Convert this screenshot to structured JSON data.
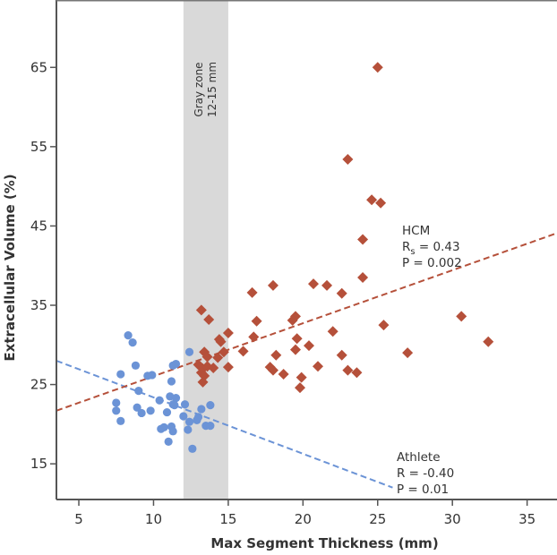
{
  "chart_data": {
    "type": "scatter",
    "title": "",
    "xlabel": "Max Segment Thickness (mm)",
    "ylabel": "Extracellular Volume (%)",
    "xlim": [
      3.5,
      37
    ],
    "ylim": [
      10.5,
      73.5
    ],
    "xticks": [
      5,
      10,
      15,
      20,
      25,
      30,
      35
    ],
    "yticks": [
      15,
      25,
      35,
      45,
      55,
      65
    ],
    "grid": false,
    "gray_zone": {
      "x_range": [
        12,
        15
      ],
      "label_line1": "Gray zone",
      "label_line2": "12-15 mm",
      "color": "#d9d9d9"
    },
    "series": [
      {
        "name": "Athlete",
        "marker": "circle",
        "color": "#6b93d6",
        "annotation": {
          "line1": "Athlete",
          "line2": "R = -0.40",
          "line3": "P = 0.01"
        },
        "trendline": {
          "x": [
            3.5,
            26
          ],
          "y": [
            28.0,
            12.0
          ]
        },
        "points": [
          [
            8.3,
            31.2
          ],
          [
            8.6,
            30.3
          ],
          [
            8.8,
            27.4
          ],
          [
            7.8,
            26.3
          ],
          [
            9.6,
            26.1
          ],
          [
            9.9,
            26.2
          ],
          [
            11.3,
            27.4
          ],
          [
            11.5,
            27.6
          ],
          [
            12.4,
            29.1
          ],
          [
            11.2,
            25.4
          ],
          [
            9.0,
            24.2
          ],
          [
            7.5,
            22.7
          ],
          [
            7.5,
            21.7
          ],
          [
            7.8,
            20.4
          ],
          [
            8.9,
            22.1
          ],
          [
            9.2,
            21.4
          ],
          [
            9.8,
            21.7
          ],
          [
            10.4,
            23.0
          ],
          [
            11.1,
            23.5
          ],
          [
            11.5,
            23.3
          ],
          [
            11.3,
            22.5
          ],
          [
            11.4,
            22.4
          ],
          [
            10.9,
            21.5
          ],
          [
            10.5,
            19.4
          ],
          [
            10.7,
            19.6
          ],
          [
            11.2,
            19.7
          ],
          [
            11.3,
            19.1
          ],
          [
            11.0,
            17.8
          ],
          [
            12.1,
            22.5
          ],
          [
            12.0,
            21.0
          ],
          [
            12.4,
            20.3
          ],
          [
            12.3,
            19.3
          ],
          [
            12.6,
            16.9
          ],
          [
            12.9,
            20.5
          ],
          [
            13.0,
            20.9
          ],
          [
            13.2,
            21.9
          ],
          [
            13.8,
            22.4
          ],
          [
            13.5,
            19.8
          ],
          [
            13.8,
            19.8
          ]
        ]
      },
      {
        "name": "HCM",
        "marker": "diamond",
        "color": "#b5503a",
        "annotation": {
          "line1": "HCM",
          "line2_main": "R",
          "line2_sub": "s",
          "line2_rest": " = 0.43",
          "line3": "P = 0.002"
        },
        "trendline": {
          "x": [
            3.5,
            37
          ],
          "y": [
            21.7,
            44.1
          ]
        },
        "points": [
          [
            25.0,
            65.0
          ],
          [
            23.0,
            53.4
          ],
          [
            24.6,
            48.3
          ],
          [
            25.2,
            47.9
          ],
          [
            24.0,
            43.3
          ],
          [
            24.0,
            38.5
          ],
          [
            20.7,
            37.7
          ],
          [
            21.6,
            37.5
          ],
          [
            18.0,
            37.5
          ],
          [
            16.6,
            36.6
          ],
          [
            22.6,
            36.5
          ],
          [
            13.2,
            34.4
          ],
          [
            13.7,
            33.2
          ],
          [
            16.9,
            33.0
          ],
          [
            19.5,
            33.6
          ],
          [
            19.3,
            33.1
          ],
          [
            30.6,
            33.6
          ],
          [
            25.4,
            32.5
          ],
          [
            22.0,
            31.7
          ],
          [
            15.0,
            31.5
          ],
          [
            14.4,
            30.7
          ],
          [
            14.5,
            30.4
          ],
          [
            16.7,
            31.0
          ],
          [
            19.6,
            30.8
          ],
          [
            20.4,
            29.9
          ],
          [
            14.7,
            29.1
          ],
          [
            16.0,
            29.2
          ],
          [
            13.4,
            29.1
          ],
          [
            13.6,
            28.5
          ],
          [
            14.3,
            28.4
          ],
          [
            18.2,
            28.7
          ],
          [
            22.6,
            28.7
          ],
          [
            27.0,
            29.0
          ],
          [
            32.4,
            30.4
          ],
          [
            19.5,
            29.4
          ],
          [
            13.0,
            27.5
          ],
          [
            13.3,
            27.0
          ],
          [
            13.6,
            27.3
          ],
          [
            14.0,
            27.1
          ],
          [
            15.0,
            27.2
          ],
          [
            17.8,
            27.2
          ],
          [
            18.0,
            26.8
          ],
          [
            21.0,
            27.3
          ],
          [
            13.2,
            26.5
          ],
          [
            13.4,
            26.1
          ],
          [
            18.7,
            26.3
          ],
          [
            23.0,
            26.8
          ],
          [
            23.6,
            26.5
          ],
          [
            19.9,
            25.9
          ],
          [
            13.3,
            25.3
          ],
          [
            19.8,
            24.6
          ]
        ]
      }
    ]
  }
}
